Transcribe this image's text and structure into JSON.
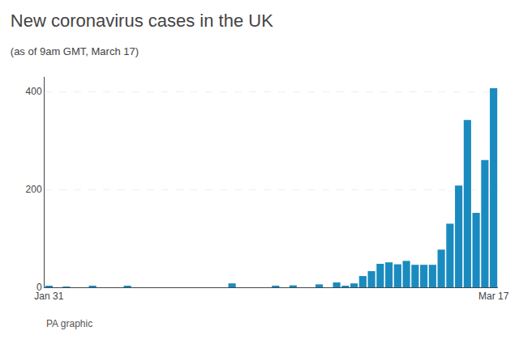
{
  "chart_data": {
    "type": "bar",
    "title": "New coronavirus cases in the UK",
    "subtitle": "(as of 9am GMT, March 17)",
    "annotations": [
      "PA graphic"
    ],
    "categories": [
      "Jan 31",
      null,
      null,
      null,
      null,
      null,
      null,
      null,
      null,
      null,
      null,
      null,
      null,
      null,
      null,
      null,
      null,
      null,
      null,
      null,
      null,
      null,
      null,
      null,
      null,
      null,
      null,
      null,
      null,
      null,
      null,
      null,
      null,
      null,
      null,
      null,
      null,
      null,
      null,
      null,
      null,
      null,
      null,
      null,
      null,
      null,
      null,
      null,
      null,
      null,
      null,
      "Mar 17"
    ],
    "values": [
      2,
      0,
      1,
      0,
      0,
      3,
      0,
      0,
      0,
      2,
      0,
      0,
      0,
      0,
      0,
      0,
      0,
      0,
      0,
      0,
      0,
      8,
      0,
      0,
      0,
      0,
      3,
      0,
      4,
      0,
      0,
      6,
      0,
      10,
      3,
      8,
      23,
      33,
      48,
      51,
      47,
      54,
      46,
      46,
      46,
      77,
      130,
      208,
      342,
      152,
      260,
      407
    ],
    "color": "#1a8bbf",
    "ylim": [
      0,
      430
    ],
    "yticks": [
      0,
      200,
      400
    ],
    "grid": true
  }
}
